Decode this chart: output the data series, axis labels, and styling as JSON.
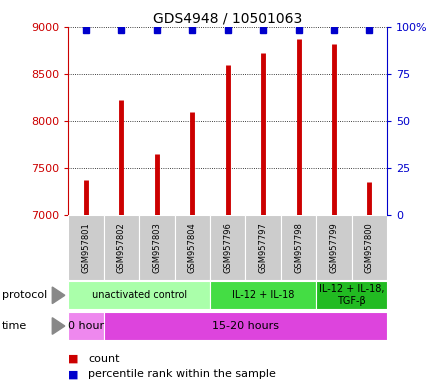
{
  "title": "GDS4948 / 10501063",
  "samples": [
    "GSM957801",
    "GSM957802",
    "GSM957803",
    "GSM957804",
    "GSM957796",
    "GSM957797",
    "GSM957798",
    "GSM957799",
    "GSM957800"
  ],
  "counts": [
    7370,
    8220,
    7650,
    8100,
    8600,
    8720,
    8870,
    8820,
    7350
  ],
  "percentile_ranks": [
    100,
    100,
    100,
    100,
    100,
    100,
    100,
    100,
    100
  ],
  "ylim": [
    7000,
    9000
  ],
  "y2lim": [
    0,
    100
  ],
  "yticks": [
    7000,
    7500,
    8000,
    8500,
    9000
  ],
  "y2ticks": [
    0,
    25,
    50,
    75,
    100
  ],
  "bar_color": "#cc0000",
  "dot_color": "#0000cc",
  "grid_color": "#000000",
  "protocol_groups": [
    {
      "label": "unactivated control",
      "start": 0,
      "end": 4,
      "color": "#aaffaa"
    },
    {
      "label": "IL-12 + IL-18",
      "start": 4,
      "end": 7,
      "color": "#44dd44"
    },
    {
      "label": "IL-12 + IL-18,\nTGF-β",
      "start": 7,
      "end": 9,
      "color": "#22bb22"
    }
  ],
  "time_groups": [
    {
      "label": "0 hour",
      "start": 0,
      "end": 1,
      "color": "#ee88ee"
    },
    {
      "label": "15-20 hours",
      "start": 1,
      "end": 9,
      "color": "#dd44dd"
    }
  ],
  "sample_box_color": "#cccccc",
  "sample_box_edge": "#ffffff",
  "left_label_color": "#cc0000",
  "right_label_color": "#0000cc",
  "title_fontsize": 10,
  "tick_fontsize": 8,
  "sample_fontsize": 6,
  "row_label_fontsize": 8,
  "legend_fontsize": 8,
  "protocol_fontsize": 7,
  "time_fontsize": 8
}
